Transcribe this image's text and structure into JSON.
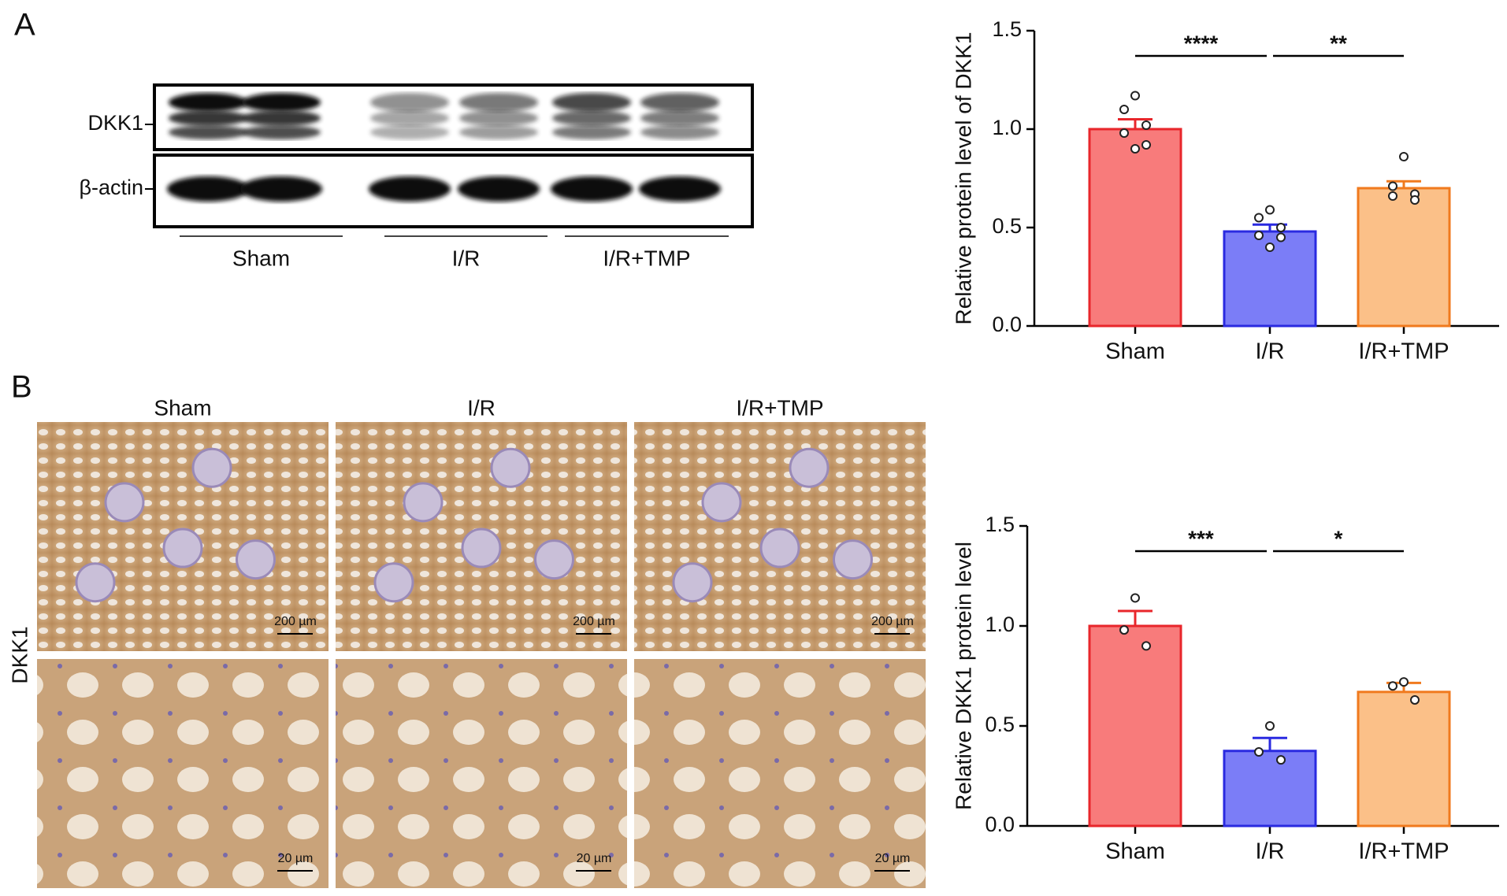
{
  "panels": {
    "a": "A",
    "b": "B"
  },
  "blot": {
    "bands": [
      "DKK1",
      "β-actin"
    ],
    "groups": [
      "Sham",
      "I/R",
      "I/R+TMP"
    ]
  },
  "ihc": {
    "groups": [
      "Sham",
      "I/R",
      "I/R+TMP"
    ],
    "row_label": "DKK1",
    "scale_bars": [
      "200 µm",
      "200 µm",
      "200 µm",
      "20 µm",
      "20 µm",
      "20 µm"
    ]
  },
  "chart_data": [
    {
      "type": "bar",
      "y_label": "Relative protein level of DKK1",
      "categories": [
        "Sham",
        "I/R",
        "I/R+TMP"
      ],
      "values": [
        1.0,
        0.48,
        0.7
      ],
      "errors": [
        0.05,
        0.035,
        0.035
      ],
      "points": [
        [
          1.17,
          1.1,
          1.02,
          0.98,
          0.92,
          0.9
        ],
        [
          0.59,
          0.55,
          0.5,
          0.46,
          0.45,
          0.4
        ],
        [
          0.86,
          0.71,
          0.67,
          0.66,
          0.64
        ]
      ],
      "colors": [
        "#f87b7b",
        "#7b7df7",
        "#fbc088"
      ],
      "edge_colors": [
        "#e8262b",
        "#2a2ae0",
        "#f07a1e"
      ],
      "ylim": [
        0,
        1.5
      ],
      "yticks": [
        {
          "value": 0,
          "label": "0.0"
        },
        {
          "value": 0.5,
          "label": "0.5"
        },
        {
          "value": 1,
          "label": "1.0"
        },
        {
          "value": 1.5,
          "label": "1.5"
        }
      ],
      "significance": [
        {
          "label": "****",
          "between": [
            0,
            1
          ]
        },
        {
          "label": "**",
          "between": [
            1,
            2
          ]
        }
      ]
    },
    {
      "type": "bar",
      "y_label": "Relative DKK1 protein level",
      "categories": [
        "Sham",
        "I/R",
        "I/R+TMP"
      ],
      "values": [
        1.0,
        0.375,
        0.67
      ],
      "errors": [
        0.075,
        0.065,
        0.045
      ],
      "points": [
        [
          1.14,
          0.98,
          0.9
        ],
        [
          0.5,
          0.37,
          0.33
        ],
        [
          0.72,
          0.7,
          0.63
        ]
      ],
      "colors": [
        "#f87b7b",
        "#7b7df7",
        "#fbc088"
      ],
      "edge_colors": [
        "#e8262b",
        "#2a2ae0",
        "#f07a1e"
      ],
      "ylim": [
        0,
        1.5
      ],
      "yticks": [
        {
          "value": 0,
          "label": "0.0"
        },
        {
          "value": 0.5,
          "label": "0.5"
        },
        {
          "value": 1,
          "label": "1.0"
        },
        {
          "value": 1.5,
          "label": "1.5"
        }
      ],
      "significance": [
        {
          "label": "***",
          "between": [
            0,
            1
          ]
        },
        {
          "label": "*",
          "between": [
            1,
            2
          ]
        }
      ]
    }
  ]
}
